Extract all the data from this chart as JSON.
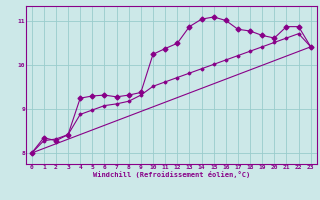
{
  "xlabel": "Windchill (Refroidissement éolien,°C)",
  "bg_color": "#cce8e8",
  "line_color": "#880088",
  "xlim": [
    -0.5,
    23.5
  ],
  "ylim": [
    7.75,
    11.35
  ],
  "xticks": [
    0,
    1,
    2,
    3,
    4,
    5,
    6,
    7,
    8,
    9,
    10,
    11,
    12,
    13,
    14,
    15,
    16,
    17,
    18,
    19,
    20,
    21,
    22,
    23
  ],
  "yticks": [
    8,
    9,
    10,
    11
  ],
  "grid_color": "#99cccc",
  "curve1_x": [
    0,
    1,
    2,
    3,
    4,
    5,
    6,
    7,
    8,
    9,
    10,
    11,
    12,
    13,
    14,
    15,
    16,
    17,
    18,
    19,
    20,
    21,
    22,
    23
  ],
  "curve1_y": [
    8.0,
    8.35,
    8.28,
    8.42,
    9.25,
    9.3,
    9.32,
    9.28,
    9.32,
    9.38,
    10.25,
    10.38,
    10.5,
    10.88,
    11.05,
    11.1,
    11.02,
    10.82,
    10.78,
    10.68,
    10.62,
    10.88,
    10.88,
    10.42
  ],
  "curve2_x": [
    0,
    1,
    2,
    3,
    4,
    5,
    6,
    7,
    8,
    9,
    10,
    11,
    12,
    13,
    14,
    15,
    16,
    17,
    18,
    19,
    20,
    21,
    22,
    23
  ],
  "curve2_y": [
    8.0,
    8.28,
    8.32,
    8.42,
    8.88,
    8.98,
    9.08,
    9.12,
    9.18,
    9.32,
    9.52,
    9.62,
    9.72,
    9.82,
    9.92,
    10.02,
    10.12,
    10.22,
    10.32,
    10.42,
    10.52,
    10.62,
    10.72,
    10.42
  ],
  "curve3_x": [
    0,
    23
  ],
  "curve3_y": [
    8.0,
    10.42
  ]
}
